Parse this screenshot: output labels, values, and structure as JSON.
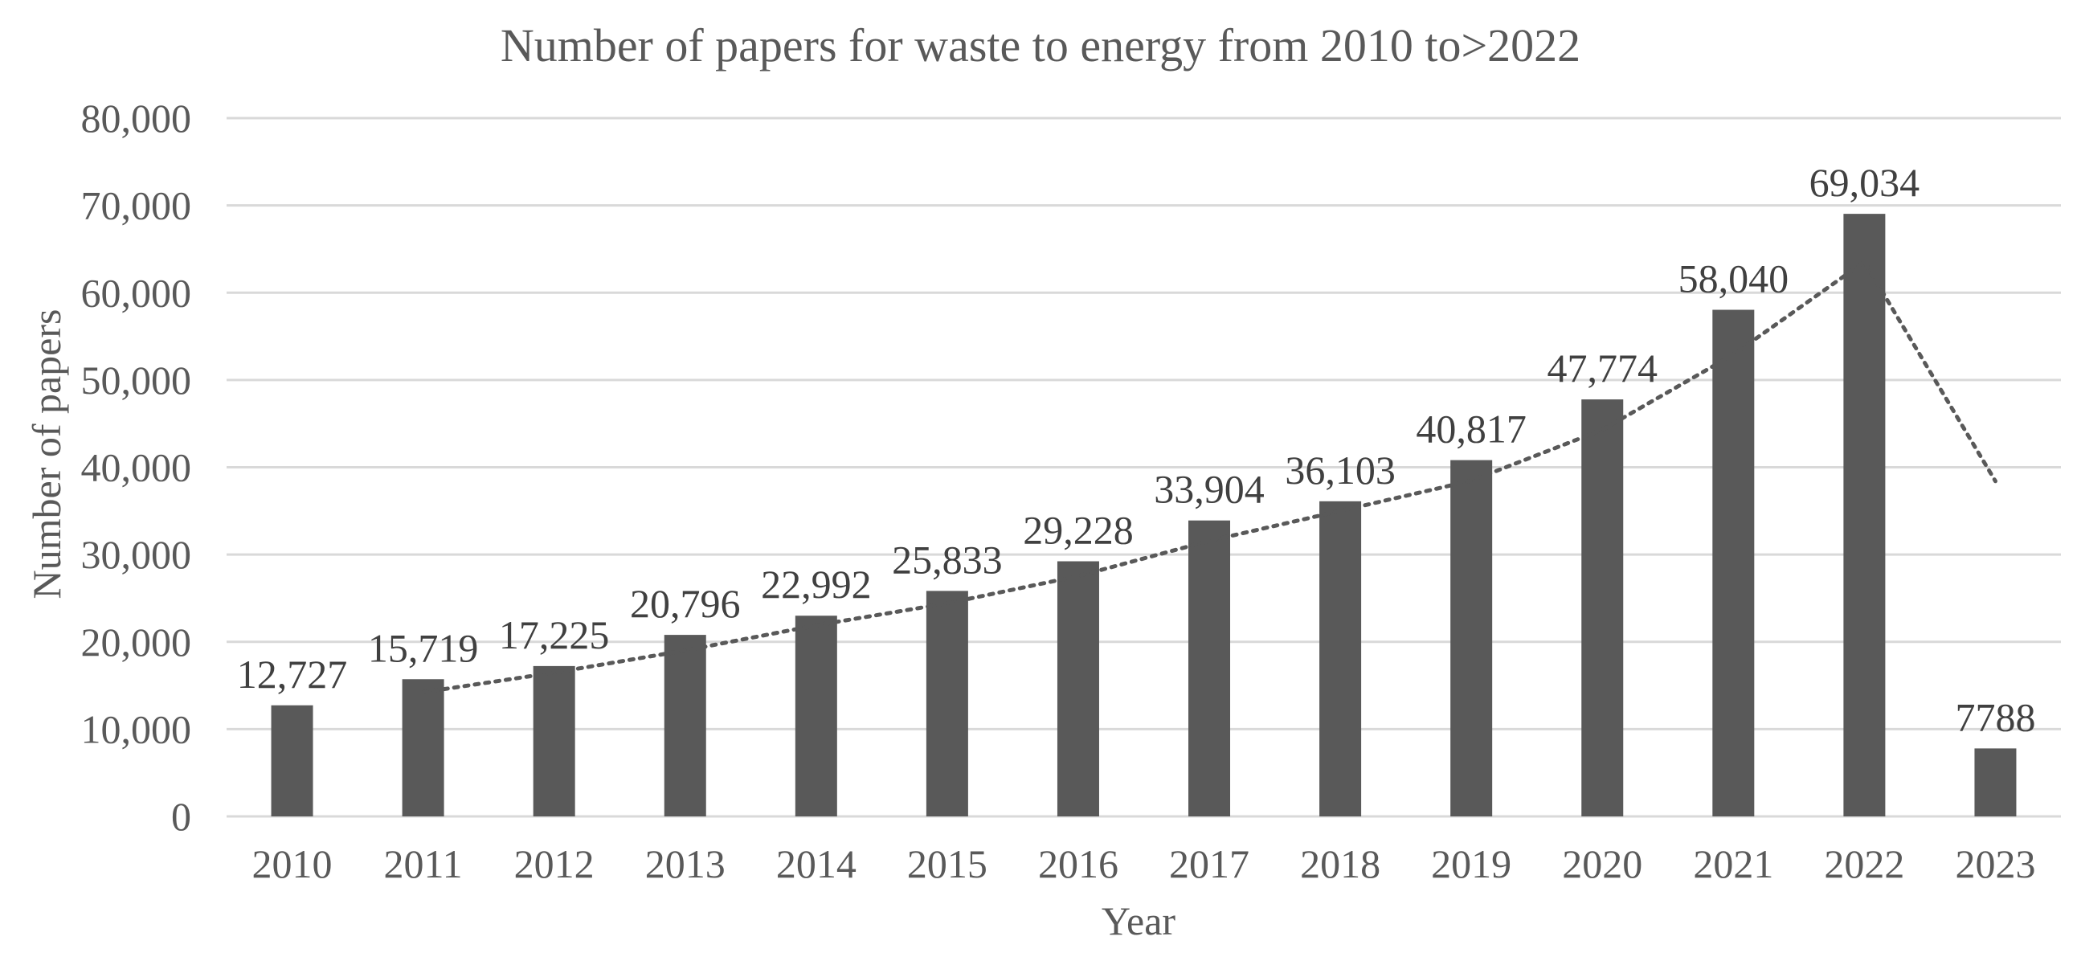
{
  "chart_data": {
    "type": "bar",
    "title": "Number of papers for waste to energy from 2010 to>2022",
    "xlabel": "Year",
    "ylabel": "Number of papers",
    "ylim": [
      0,
      80000
    ],
    "y_ticks": [
      "0",
      "10,000",
      "20,000",
      "30,000",
      "40,000",
      "50,000",
      "60,000",
      "70,000",
      "80,000"
    ],
    "y_tick_values": [
      0,
      10000,
      20000,
      30000,
      40000,
      50000,
      60000,
      70000,
      80000
    ],
    "grid": true,
    "categories": [
      "2010",
      "2011",
      "2012",
      "2013",
      "2014",
      "2015",
      "2016",
      "2017",
      "2018",
      "2019",
      "2020",
      "2021",
      "2022",
      "2023"
    ],
    "values": [
      12727,
      15719,
      17225,
      20796,
      22992,
      25833,
      29228,
      33904,
      36103,
      40817,
      47774,
      58040,
      69034,
      7788
    ],
    "data_labels": [
      "12,727",
      "15,719",
      "17,225",
      "20,796",
      "22,992",
      "25,833",
      "29,228",
      "33,904",
      "36,103",
      "40,817",
      "47,774",
      "58,040",
      "69,034",
      "7788"
    ],
    "series_color": "#595959",
    "trendline": {
      "type": "moving-average",
      "period": 2,
      "start_category": "2011",
      "end_category": "2023",
      "style": "dotted",
      "color": "#595959"
    }
  }
}
